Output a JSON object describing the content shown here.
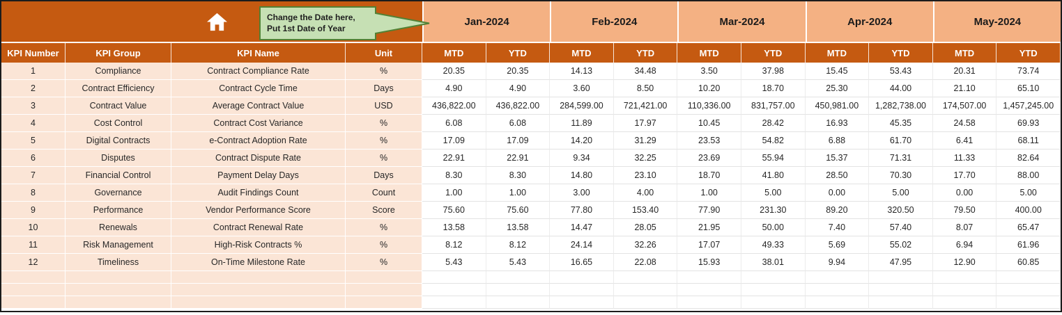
{
  "sheet": {
    "icons": {
      "home": "home-icon"
    },
    "callout": {
      "line1": "Change the Date here,",
      "line2": "Put 1st Date of Year"
    },
    "months": [
      "Jan-2024",
      "Feb-2024",
      "Mar-2024",
      "Apr-2024",
      "May-2024"
    ],
    "sub_headers": [
      "MTD",
      "YTD"
    ],
    "fixed_headers": [
      "KPI Number",
      "KPI Group",
      "KPI Name",
      "Unit"
    ],
    "rows": [
      {
        "number": "1",
        "group": "Compliance",
        "name": "Contract Compliance Rate",
        "unit": "%",
        "values": [
          "20.35",
          "20.35",
          "14.13",
          "34.48",
          "3.50",
          "37.98",
          "15.45",
          "53.43",
          "20.31",
          "73.74"
        ]
      },
      {
        "number": "2",
        "group": "Contract Efficiency",
        "name": "Contract Cycle Time",
        "unit": "Days",
        "values": [
          "4.90",
          "4.90",
          "3.60",
          "8.50",
          "10.20",
          "18.70",
          "25.30",
          "44.00",
          "21.10",
          "65.10"
        ]
      },
      {
        "number": "3",
        "group": "Contract Value",
        "name": "Average Contract Value",
        "unit": "USD",
        "values": [
          "436,822.00",
          "436,822.00",
          "284,599.00",
          "721,421.00",
          "110,336.00",
          "831,757.00",
          "450,981.00",
          "1,282,738.00",
          "174,507.00",
          "1,457,245.00"
        ]
      },
      {
        "number": "4",
        "group": "Cost Control",
        "name": "Contract Cost Variance",
        "unit": "%",
        "values": [
          "6.08",
          "6.08",
          "11.89",
          "17.97",
          "10.45",
          "28.42",
          "16.93",
          "45.35",
          "24.58",
          "69.93"
        ]
      },
      {
        "number": "5",
        "group": "Digital Contracts",
        "name": "e-Contract Adoption Rate",
        "unit": "%",
        "values": [
          "17.09",
          "17.09",
          "14.20",
          "31.29",
          "23.53",
          "54.82",
          "6.88",
          "61.70",
          "6.41",
          "68.11"
        ]
      },
      {
        "number": "6",
        "group": "Disputes",
        "name": "Contract Dispute Rate",
        "unit": "%",
        "values": [
          "22.91",
          "22.91",
          "9.34",
          "32.25",
          "23.69",
          "55.94",
          "15.37",
          "71.31",
          "11.33",
          "82.64"
        ]
      },
      {
        "number": "7",
        "group": "Financial Control",
        "name": "Payment Delay Days",
        "unit": "Days",
        "values": [
          "8.30",
          "8.30",
          "14.80",
          "23.10",
          "18.70",
          "41.80",
          "28.50",
          "70.30",
          "17.70",
          "88.00"
        ]
      },
      {
        "number": "8",
        "group": "Governance",
        "name": "Audit Findings Count",
        "unit": "Count",
        "values": [
          "1.00",
          "1.00",
          "3.00",
          "4.00",
          "1.00",
          "5.00",
          "0.00",
          "5.00",
          "0.00",
          "5.00"
        ]
      },
      {
        "number": "9",
        "group": "Performance",
        "name": "Vendor Performance Score",
        "unit": "Score",
        "values": [
          "75.60",
          "75.60",
          "77.80",
          "153.40",
          "77.90",
          "231.30",
          "89.20",
          "320.50",
          "79.50",
          "400.00"
        ]
      },
      {
        "number": "10",
        "group": "Renewals",
        "name": "Contract Renewal Rate",
        "unit": "%",
        "values": [
          "13.58",
          "13.58",
          "14.47",
          "28.05",
          "21.95",
          "50.00",
          "7.40",
          "57.40",
          "8.07",
          "65.47"
        ]
      },
      {
        "number": "11",
        "group": "Risk Management",
        "name": "High-Risk Contracts %",
        "unit": "%",
        "values": [
          "8.12",
          "8.12",
          "24.14",
          "32.26",
          "17.07",
          "49.33",
          "5.69",
          "55.02",
          "6.94",
          "61.96"
        ]
      },
      {
        "number": "12",
        "group": "Timeliness",
        "name": "On-Time Milestone Rate",
        "unit": "%",
        "values": [
          "5.43",
          "5.43",
          "16.65",
          "22.08",
          "15.93",
          "38.01",
          "9.94",
          "47.95",
          "12.90",
          "60.85"
        ]
      }
    ],
    "empty_rows": 3,
    "colors": {
      "header_fill": "#C55A11",
      "month_band_fill": "#F4B183",
      "row_label_fill": "#FBE5D6",
      "callout_fill": "#C6E0B4",
      "callout_border": "#538135"
    }
  }
}
